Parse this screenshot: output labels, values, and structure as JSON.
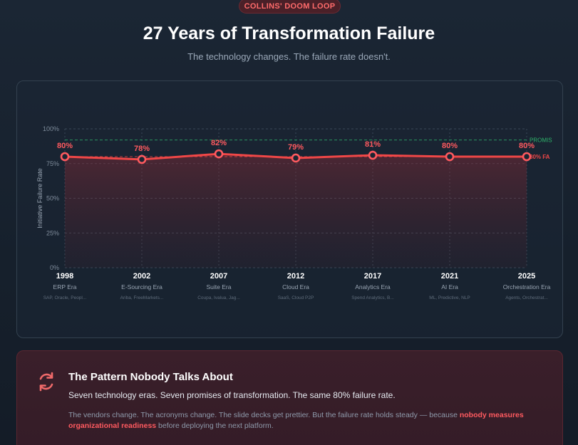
{
  "header": {
    "badge": "COLLINS' DOOM LOOP",
    "title": "27 Years of Transformation Failure",
    "subtitle": "The technology changes. The failure rate doesn't."
  },
  "chart_data": {
    "type": "line",
    "ylabel": "Initiative Failure Rate",
    "ylim": [
      0,
      100
    ],
    "y_ticks": [
      "0%",
      "25%",
      "50%",
      "75%",
      "100%"
    ],
    "grid": true,
    "x": [
      "1998",
      "2002",
      "2007",
      "2012",
      "2017",
      "2021",
      "2025"
    ],
    "eras": [
      "ERP Era",
      "E-Sourcing Era",
      "Suite Era",
      "Cloud Era",
      "Analytics Era",
      "AI Era",
      "Orchestration Era"
    ],
    "vendors": [
      "SAP, Oracle, Peopl...",
      "Ariba, FreeMarkets...",
      "Coupa, Ivalua, Jag...",
      "SaaS, Cloud P2P",
      "Spend Analytics, B...",
      "ML, Predictive, NLP",
      "Agents, Orchestrat..."
    ],
    "series": [
      {
        "values": [
          80,
          78,
          82,
          79,
          81,
          80,
          80
        ],
        "labels": [
          "80%",
          "78%",
          "82%",
          "79%",
          "81%",
          "80%",
          "80%"
        ],
        "color": "#f04747"
      }
    ],
    "reference_lines": [
      {
        "label": "PROMIS",
        "value": 92,
        "color": "#2fb36b"
      },
      {
        "label": "80% FA",
        "value": 80,
        "color": "#f04747"
      }
    ]
  },
  "pattern": {
    "icon": "refresh-icon",
    "title": "The Pattern Nobody Talks About",
    "lead": "Seven technology eras. Seven promises of transformation. The same 80% failure rate.",
    "body_start": "The vendors change. The acronyms change. The slide decks get prettier. But the failure rate holds steady — because ",
    "body_highlight": "nobody measures organizational readiness",
    "body_end": " before deploying the next platform.",
    "accent": "#ff5a5f"
  }
}
